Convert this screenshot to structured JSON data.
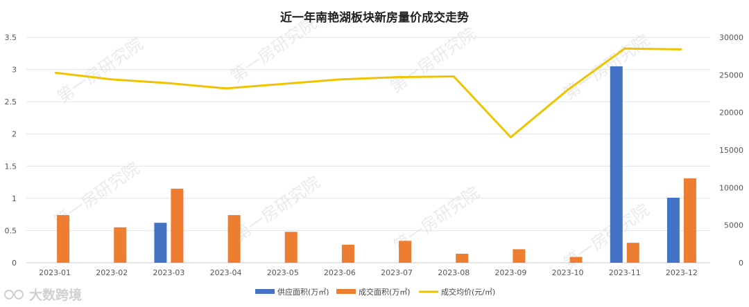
{
  "chart_data": {
    "type": "bar",
    "title": "近一年南艳湖板块新房量价成交走势",
    "categories": [
      "2023-01",
      "2023-02",
      "2023-03",
      "2023-04",
      "2023-05",
      "2023-06",
      "2023-07",
      "2023-08",
      "2023-09",
      "2023-10",
      "2023-11",
      "2023-12"
    ],
    "ylim_left": [
      0,
      3.5
    ],
    "yticks_left": [
      "0",
      "0.5",
      "1",
      "1.5",
      "2",
      "2.5",
      "3",
      "3.5"
    ],
    "ylim_right": [
      0,
      30000
    ],
    "yticks_right": [
      "0",
      "5000",
      "10000",
      "15000",
      "20000",
      "25000",
      "30000"
    ],
    "grid": true,
    "legend_position": "bottom",
    "series": [
      {
        "name": "供应面积(万㎡)",
        "type": "bar",
        "axis": "left",
        "color": "#4472c4",
        "values": [
          0,
          0,
          0.62,
          0,
          0,
          0,
          0,
          0,
          0,
          0,
          3.05,
          1.01
        ]
      },
      {
        "name": "成交面积(万㎡)",
        "type": "bar",
        "axis": "left",
        "color": "#ed7d31",
        "values": [
          0.74,
          0.55,
          1.15,
          0.74,
          0.48,
          0.28,
          0.34,
          0.14,
          0.21,
          0.09,
          0.31,
          1.31
        ]
      },
      {
        "name": "成交均价(元/㎡)",
        "type": "line",
        "axis": "right",
        "color": "#f0c300",
        "values": [
          25300,
          24400,
          23900,
          23200,
          23800,
          24400,
          24700,
          24800,
          16700,
          23000,
          28500,
          28400
        ]
      }
    ]
  },
  "watermark": "第一房研究院",
  "logo": {
    "text": "大数跨境",
    "icon": "logo-icon"
  }
}
